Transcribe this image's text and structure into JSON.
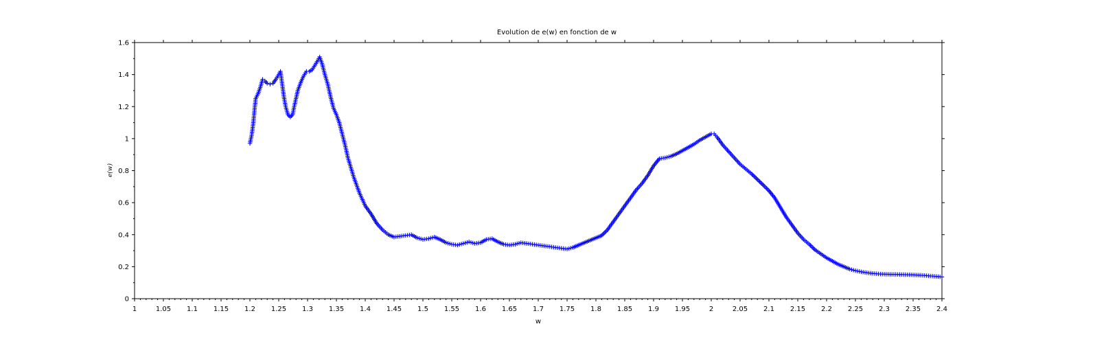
{
  "chart_data": {
    "type": "scatter",
    "title": "Evolution de e(w) en fonction de w",
    "xlabel": "w",
    "ylabel": "e(w)",
    "xlim": [
      1,
      2.4
    ],
    "ylim": [
      0,
      1.6
    ],
    "x_ticks": [
      "1",
      "1.05",
      "1.1",
      "1.15",
      "1.2",
      "1.25",
      "1.3",
      "1.35",
      "1.4",
      "1.45",
      "1.5",
      "1.55",
      "1.6",
      "1.65",
      "1.7",
      "1.75",
      "1.8",
      "1.85",
      "1.9",
      "1.95",
      "2",
      "2.05",
      "2.1",
      "2.15",
      "2.2",
      "2.25",
      "2.3",
      "2.35",
      "2.4"
    ],
    "y_ticks": [
      "0",
      "0.2",
      "0.4",
      "0.6",
      "0.8",
      "1",
      "1.2",
      "1.4",
      "1.6"
    ],
    "marker": "+",
    "color": "#0000ff",
    "grid": false,
    "series": [
      {
        "name": "e(w)",
        "points": [
          [
            1.2,
            0.97
          ],
          [
            1.203,
            1.02
          ],
          [
            1.206,
            1.1
          ],
          [
            1.208,
            1.18
          ],
          [
            1.21,
            1.25
          ],
          [
            1.214,
            1.28
          ],
          [
            1.218,
            1.32
          ],
          [
            1.222,
            1.37
          ],
          [
            1.226,
            1.36
          ],
          [
            1.23,
            1.345
          ],
          [
            1.235,
            1.34
          ],
          [
            1.24,
            1.345
          ],
          [
            1.245,
            1.37
          ],
          [
            1.25,
            1.4
          ],
          [
            1.253,
            1.42
          ],
          [
            1.256,
            1.34
          ],
          [
            1.259,
            1.26
          ],
          [
            1.262,
            1.2
          ],
          [
            1.266,
            1.15
          ],
          [
            1.27,
            1.135
          ],
          [
            1.274,
            1.15
          ],
          [
            1.278,
            1.22
          ],
          [
            1.283,
            1.3
          ],
          [
            1.288,
            1.35
          ],
          [
            1.293,
            1.39
          ],
          [
            1.298,
            1.42
          ],
          [
            1.303,
            1.42
          ],
          [
            1.308,
            1.43
          ],
          [
            1.313,
            1.46
          ],
          [
            1.318,
            1.49
          ],
          [
            1.321,
            1.51
          ],
          [
            1.325,
            1.47
          ],
          [
            1.33,
            1.4
          ],
          [
            1.335,
            1.34
          ],
          [
            1.34,
            1.26
          ],
          [
            1.345,
            1.19
          ],
          [
            1.35,
            1.15
          ],
          [
            1.355,
            1.1
          ],
          [
            1.36,
            1.03
          ],
          [
            1.365,
            0.96
          ],
          [
            1.37,
            0.88
          ],
          [
            1.375,
            0.82
          ],
          [
            1.38,
            0.76
          ],
          [
            1.385,
            0.71
          ],
          [
            1.39,
            0.66
          ],
          [
            1.395,
            0.62
          ],
          [
            1.4,
            0.58
          ],
          [
            1.41,
            0.53
          ],
          [
            1.42,
            0.47
          ],
          [
            1.43,
            0.43
          ],
          [
            1.44,
            0.4
          ],
          [
            1.45,
            0.385
          ],
          [
            1.46,
            0.39
          ],
          [
            1.47,
            0.395
          ],
          [
            1.48,
            0.4
          ],
          [
            1.49,
            0.38
          ],
          [
            1.5,
            0.37
          ],
          [
            1.51,
            0.375
          ],
          [
            1.52,
            0.385
          ],
          [
            1.53,
            0.37
          ],
          [
            1.54,
            0.35
          ],
          [
            1.55,
            0.34
          ],
          [
            1.56,
            0.335
          ],
          [
            1.57,
            0.345
          ],
          [
            1.58,
            0.355
          ],
          [
            1.59,
            0.345
          ],
          [
            1.6,
            0.35
          ],
          [
            1.61,
            0.37
          ],
          [
            1.62,
            0.375
          ],
          [
            1.63,
            0.355
          ],
          [
            1.64,
            0.34
          ],
          [
            1.65,
            0.335
          ],
          [
            1.66,
            0.34
          ],
          [
            1.67,
            0.35
          ],
          [
            1.68,
            0.345
          ],
          [
            1.69,
            0.34
          ],
          [
            1.7,
            0.335
          ],
          [
            1.71,
            0.33
          ],
          [
            1.72,
            0.325
          ],
          [
            1.73,
            0.32
          ],
          [
            1.74,
            0.315
          ],
          [
            1.75,
            0.31
          ],
          [
            1.76,
            0.32
          ],
          [
            1.77,
            0.335
          ],
          [
            1.78,
            0.35
          ],
          [
            1.79,
            0.365
          ],
          [
            1.8,
            0.38
          ],
          [
            1.81,
            0.395
          ],
          [
            1.82,
            0.43
          ],
          [
            1.83,
            0.48
          ],
          [
            1.84,
            0.53
          ],
          [
            1.85,
            0.58
          ],
          [
            1.86,
            0.63
          ],
          [
            1.87,
            0.68
          ],
          [
            1.88,
            0.72
          ],
          [
            1.89,
            0.77
          ],
          [
            1.9,
            0.83
          ],
          [
            1.91,
            0.875
          ],
          [
            1.92,
            0.88
          ],
          [
            1.93,
            0.89
          ],
          [
            1.94,
            0.905
          ],
          [
            1.95,
            0.925
          ],
          [
            1.96,
            0.945
          ],
          [
            1.97,
            0.965
          ],
          [
            1.98,
            0.99
          ],
          [
            1.99,
            1.01
          ],
          [
            2.0,
            1.03
          ],
          [
            2.005,
            1.03
          ],
          [
            2.01,
            1.01
          ],
          [
            2.02,
            0.96
          ],
          [
            2.03,
            0.92
          ],
          [
            2.04,
            0.88
          ],
          [
            2.05,
            0.84
          ],
          [
            2.06,
            0.81
          ],
          [
            2.07,
            0.78
          ],
          [
            2.08,
            0.745
          ],
          [
            2.09,
            0.71
          ],
          [
            2.1,
            0.675
          ],
          [
            2.11,
            0.63
          ],
          [
            2.12,
            0.57
          ],
          [
            2.13,
            0.51
          ],
          [
            2.14,
            0.46
          ],
          [
            2.15,
            0.41
          ],
          [
            2.16,
            0.37
          ],
          [
            2.17,
            0.34
          ],
          [
            2.18,
            0.305
          ],
          [
            2.19,
            0.28
          ],
          [
            2.2,
            0.255
          ],
          [
            2.21,
            0.235
          ],
          [
            2.22,
            0.215
          ],
          [
            2.23,
            0.2
          ],
          [
            2.24,
            0.185
          ],
          [
            2.25,
            0.175
          ],
          [
            2.26,
            0.168
          ],
          [
            2.27,
            0.162
          ],
          [
            2.28,
            0.158
          ],
          [
            2.29,
            0.155
          ],
          [
            2.3,
            0.153
          ],
          [
            2.31,
            0.152
          ],
          [
            2.32,
            0.152
          ],
          [
            2.33,
            0.151
          ],
          [
            2.34,
            0.15
          ],
          [
            2.35,
            0.149
          ],
          [
            2.36,
            0.147
          ],
          [
            2.37,
            0.145
          ],
          [
            2.38,
            0.142
          ],
          [
            2.39,
            0.139
          ],
          [
            2.4,
            0.136
          ]
        ]
      }
    ]
  }
}
